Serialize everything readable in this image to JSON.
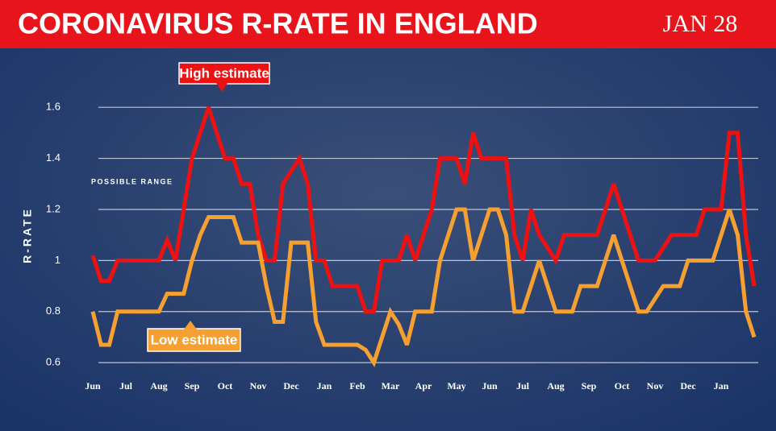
{
  "chart_data": {
    "type": "line",
    "title": "CORONAVIRUS R-RATE IN ENGLAND",
    "date": "JAN 28",
    "ylabel": "R-RATE",
    "annotation": "POSSIBLE RANGE",
    "categories": [
      "Jun",
      null,
      null,
      null,
      "Jul",
      null,
      null,
      null,
      "Aug",
      null,
      null,
      null,
      "Sep",
      null,
      null,
      null,
      "Oct",
      null,
      null,
      null,
      "Nov",
      null,
      null,
      null,
      "Dec",
      null,
      null,
      null,
      "Jan",
      null,
      null,
      null,
      "Feb",
      null,
      null,
      null,
      "Mar",
      null,
      null,
      null,
      "Apr",
      null,
      null,
      null,
      "May",
      null,
      null,
      null,
      "Jun",
      null,
      null,
      null,
      "Jul",
      null,
      null,
      null,
      "Aug",
      null,
      null,
      null,
      "Sep",
      null,
      null,
      null,
      "Oct",
      null,
      null,
      null,
      "Nov",
      null,
      null,
      null,
      "Dec",
      null,
      null,
      null,
      "Jan",
      null,
      null,
      null,
      null
    ],
    "series": [
      {
        "name": "High estimate",
        "color": "#ee1111",
        "values": [
          1.02,
          0.92,
          0.92,
          1.0,
          1.0,
          1.0,
          1.0,
          1.0,
          1.0,
          1.08,
          1.0,
          1.2,
          1.4,
          1.5,
          1.6,
          1.5,
          1.4,
          1.4,
          1.3,
          1.3,
          1.1,
          1.0,
          1.0,
          1.3,
          1.35,
          1.4,
          1.3,
          1.0,
          1.0,
          0.9,
          0.9,
          0.9,
          0.9,
          0.8,
          0.8,
          1.0,
          1.0,
          1.0,
          1.1,
          1.0,
          1.1,
          1.2,
          1.4,
          1.4,
          1.4,
          1.3,
          1.5,
          1.4,
          1.4,
          1.4,
          1.4,
          1.1,
          1.0,
          1.2,
          1.1,
          1.05,
          1.0,
          1.1,
          1.1,
          1.1,
          1.1,
          1.1,
          1.2,
          1.3,
          1.2,
          1.1,
          1.0,
          1.0,
          1.0,
          1.05,
          1.1,
          1.1,
          1.1,
          1.1,
          1.2,
          1.2,
          1.2,
          1.5,
          1.5,
          1.1,
          0.9
        ]
      },
      {
        "name": "Low estimate",
        "color": "#f5a030",
        "values": [
          0.8,
          0.67,
          0.67,
          0.8,
          0.8,
          0.8,
          0.8,
          0.8,
          0.8,
          0.87,
          0.87,
          0.87,
          1.0,
          1.1,
          1.17,
          1.17,
          1.17,
          1.17,
          1.07,
          1.07,
          1.07,
          0.9,
          0.76,
          0.76,
          1.07,
          1.07,
          1.07,
          0.76,
          0.67,
          0.67,
          0.67,
          0.67,
          0.67,
          0.65,
          0.6,
          0.7,
          0.8,
          0.75,
          0.67,
          0.8,
          0.8,
          0.8,
          1.0,
          1.1,
          1.2,
          1.2,
          1.0,
          1.1,
          1.2,
          1.2,
          1.1,
          0.8,
          0.8,
          0.9,
          1.0,
          0.9,
          0.8,
          0.8,
          0.8,
          0.9,
          0.9,
          0.9,
          1.0,
          1.1,
          1.0,
          0.9,
          0.8,
          0.8,
          0.85,
          0.9,
          0.9,
          0.9,
          1.0,
          1.0,
          1.0,
          1.0,
          1.1,
          1.2,
          1.1,
          0.8,
          0.7
        ]
      }
    ],
    "ylim": [
      0.55,
      1.7
    ],
    "yticks": [
      0.6,
      0.8,
      1,
      1.2,
      1.4,
      1.6
    ],
    "grid": true
  }
}
